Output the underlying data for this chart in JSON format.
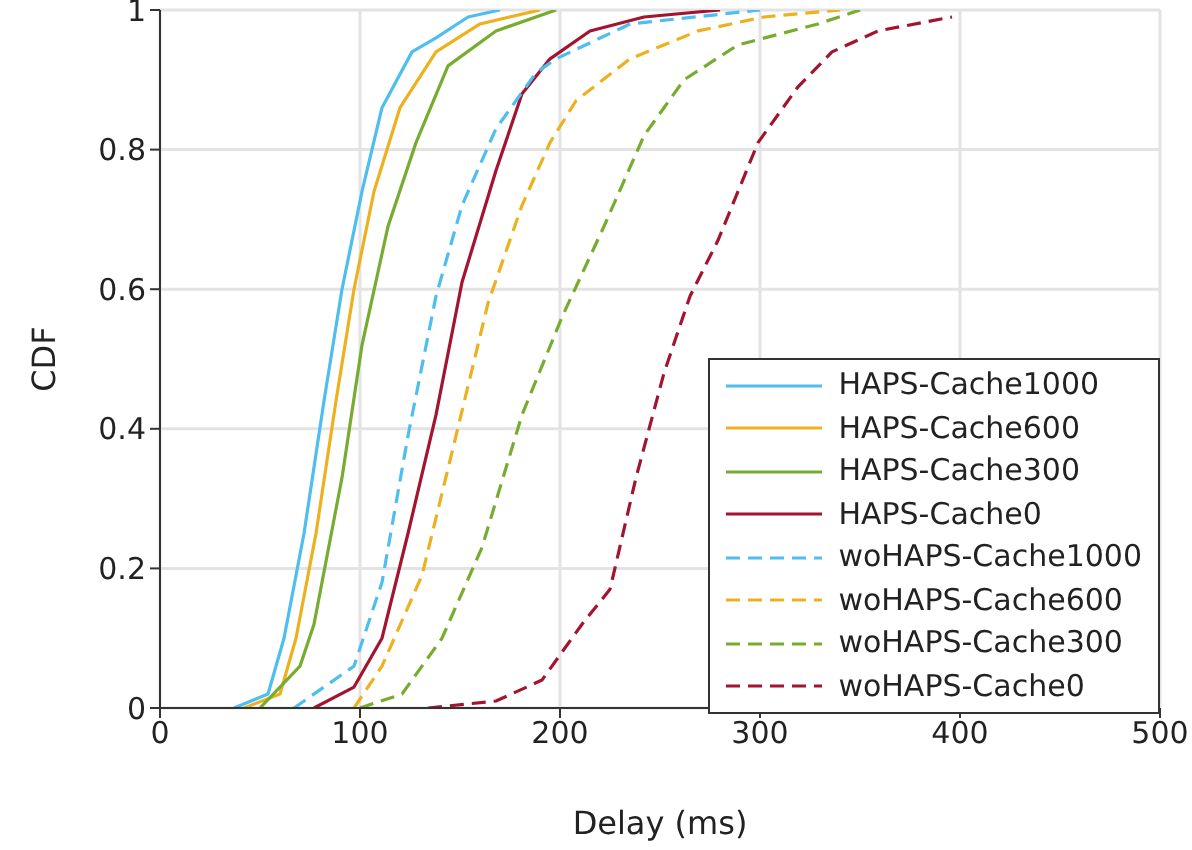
{
  "chart_data": {
    "type": "line",
    "xlabel": "Delay (ms)",
    "ylabel": "CDF",
    "xlim": [
      0,
      500
    ],
    "xticks": [
      0,
      100,
      200,
      300,
      400,
      500
    ],
    "ylim": [
      0,
      1
    ],
    "yticks": [
      0,
      0.2,
      0.4,
      0.6,
      0.8,
      1
    ],
    "grid": true,
    "legend": "bottom right",
    "marker": "none",
    "series": [
      {
        "name": "HAPS-Cache1000",
        "color": "#4dbeee",
        "line_style": "solid",
        "x": [
          37,
          54,
          62,
          72,
          82,
          91,
          101,
          111,
          126,
          138,
          154,
          170
        ],
        "values": [
          0,
          0.02,
          0.1,
          0.25,
          0.44,
          0.6,
          0.74,
          0.86,
          0.94,
          0.96,
          0.99,
          1
        ]
      },
      {
        "name": "HAPS-Cache600",
        "color": "#edb120",
        "line_style": "solid",
        "x": [
          42,
          60,
          68,
          78,
          88,
          97,
          107,
          120,
          138,
          160,
          190
        ],
        "values": [
          0,
          0.02,
          0.1,
          0.25,
          0.44,
          0.6,
          0.74,
          0.86,
          0.94,
          0.98,
          1
        ]
      },
      {
        "name": "HAPS-Cache300",
        "color": "#77ac30",
        "line_style": "solid",
        "x": [
          50,
          70,
          77,
          91,
          101,
          114,
          128,
          144,
          168,
          198
        ],
        "values": [
          0,
          0.06,
          0.12,
          0.33,
          0.52,
          0.69,
          0.81,
          0.92,
          0.97,
          1
        ]
      },
      {
        "name": "HAPS-Cache0",
        "color": "#a2142f",
        "line_style": "solid",
        "x": [
          77,
          97,
          111,
          124,
          138,
          151,
          168,
          181,
          195,
          215,
          242,
          280
        ],
        "values": [
          0,
          0.03,
          0.1,
          0.25,
          0.42,
          0.61,
          0.77,
          0.88,
          0.93,
          0.97,
          0.99,
          1
        ]
      },
      {
        "name": "woHAPS-Cache1000",
        "color": "#4dbeee",
        "line_style": "dashed",
        "x": [
          67,
          97,
          111,
          124,
          138,
          151,
          168,
          188,
          198,
          235,
          300
        ],
        "values": [
          0,
          0.06,
          0.18,
          0.39,
          0.59,
          0.72,
          0.83,
          0.91,
          0.93,
          0.98,
          1
        ]
      },
      {
        "name": "woHAPS-Cache600",
        "color": "#edb120",
        "line_style": "dashed",
        "x": [
          97,
          111,
          131,
          148,
          164,
          181,
          195,
          208,
          235,
          269,
          302,
          340
        ],
        "values": [
          0,
          0.06,
          0.19,
          0.39,
          0.58,
          0.72,
          0.81,
          0.87,
          0.93,
          0.97,
          0.99,
          1
        ]
      },
      {
        "name": "woHAPS-Cache300",
        "color": "#77ac30",
        "line_style": "dashed",
        "x": [
          100,
          121,
          141,
          161,
          181,
          201,
          222,
          242,
          252,
          262,
          289,
          329,
          350
        ],
        "values": [
          0,
          0.02,
          0.1,
          0.23,
          0.42,
          0.56,
          0.69,
          0.82,
          0.86,
          0.9,
          0.95,
          0.98,
          1
        ]
      },
      {
        "name": "woHAPS-Cache0",
        "color": "#a2142f",
        "line_style": "dashed",
        "x": [
          134,
          168,
          191,
          211,
          225,
          238,
          252,
          265,
          279,
          299,
          319,
          336,
          359,
          396
        ],
        "values": [
          0,
          0.01,
          0.04,
          0.12,
          0.17,
          0.33,
          0.48,
          0.59,
          0.67,
          0.81,
          0.89,
          0.94,
          0.97,
          0.99
        ]
      }
    ]
  }
}
